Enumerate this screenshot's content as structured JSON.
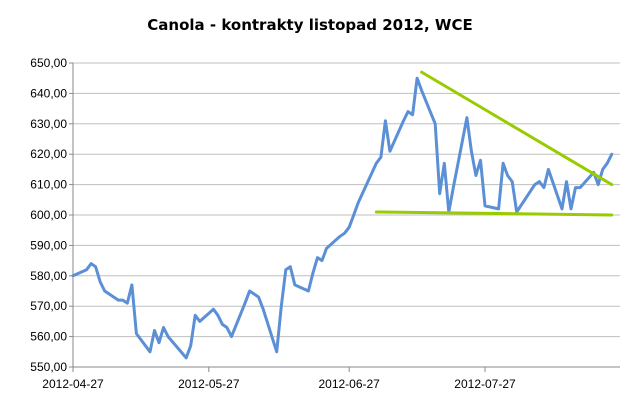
{
  "chart_data": {
    "type": "line",
    "title": "Canola - kontrakty listopad 2012, WCE",
    "xlabel": "",
    "ylabel": "",
    "ylim": [
      550,
      650
    ],
    "yticks": [
      550,
      560,
      570,
      580,
      590,
      600,
      610,
      620,
      630,
      640,
      650
    ],
    "ytick_labels": [
      "550,00",
      "560,00",
      "570,00",
      "580,00",
      "590,00",
      "600,00",
      "610,00",
      "620,00",
      "630,00",
      "640,00",
      "650,00"
    ],
    "xticks": [
      "2012-04-27",
      "2012-05-27",
      "2012-06-27",
      "2012-07-27"
    ],
    "grid": true,
    "legend": "none",
    "series": [
      {
        "color": "#5B8FD6",
        "x": [
          "2012-04-27",
          "2012-04-30",
          "2012-05-01",
          "2012-05-02",
          "2012-05-03",
          "2012-05-04",
          "2012-05-07",
          "2012-05-08",
          "2012-05-09",
          "2012-05-10",
          "2012-05-11",
          "2012-05-14",
          "2012-05-15",
          "2012-05-16",
          "2012-05-17",
          "2012-05-18",
          "2012-05-22",
          "2012-05-23",
          "2012-05-24",
          "2012-05-25",
          "2012-05-28",
          "2012-05-29",
          "2012-05-30",
          "2012-05-31",
          "2012-06-01",
          "2012-06-04",
          "2012-06-05",
          "2012-06-06",
          "2012-06-07",
          "2012-06-08",
          "2012-06-11",
          "2012-06-12",
          "2012-06-13",
          "2012-06-14",
          "2012-06-15",
          "2012-06-18",
          "2012-06-19",
          "2012-06-20",
          "2012-06-21",
          "2012-06-22",
          "2012-06-25",
          "2012-06-26",
          "2012-06-27",
          "2012-06-28",
          "2012-06-29",
          "2012-07-03",
          "2012-07-04",
          "2012-07-05",
          "2012-07-06",
          "2012-07-09",
          "2012-07-10",
          "2012-07-11",
          "2012-07-12",
          "2012-07-13",
          "2012-07-16",
          "2012-07-17",
          "2012-07-18",
          "2012-07-19",
          "2012-07-20",
          "2012-07-23",
          "2012-07-24",
          "2012-07-25",
          "2012-07-26",
          "2012-07-27",
          "2012-07-30",
          "2012-07-31",
          "2012-08-01",
          "2012-08-02",
          "2012-08-03",
          "2012-08-07",
          "2012-08-08",
          "2012-08-09",
          "2012-08-10",
          "2012-08-13",
          "2012-08-14",
          "2012-08-15",
          "2012-08-16",
          "2012-08-17",
          "2012-08-20",
          "2012-08-21",
          "2012-08-22",
          "2012-08-23",
          "2012-08-24"
        ],
        "y": [
          580,
          582,
          584,
          583,
          578,
          575,
          572,
          572,
          571,
          577,
          561,
          555,
          562,
          558,
          563,
          560,
          553,
          557,
          567,
          565,
          569,
          567,
          564,
          563,
          560,
          571,
          575,
          574,
          573,
          569,
          555,
          570,
          582,
          583,
          577,
          575,
          581,
          586,
          585,
          589,
          593,
          594,
          596,
          600,
          604,
          617,
          619,
          631,
          621,
          631,
          634,
          633,
          645,
          641,
          630,
          607,
          617,
          601,
          609,
          632,
          621,
          613,
          618,
          603,
          602,
          617,
          613,
          611,
          601,
          610,
          611,
          609,
          615,
          602,
          611,
          602,
          609,
          609,
          614,
          610,
          615,
          617,
          620
        ]
      }
    ],
    "annotations": [
      {
        "type": "trendline",
        "color": "#99CC00",
        "from": {
          "x": "2012-07-13",
          "y": 647
        },
        "to": {
          "x": "2012-08-24",
          "y": 610
        }
      },
      {
        "type": "trendline",
        "color": "#99CC00",
        "from": {
          "x": "2012-07-03",
          "y": 601
        },
        "to": {
          "x": "2012-08-24",
          "y": 600
        }
      }
    ]
  }
}
